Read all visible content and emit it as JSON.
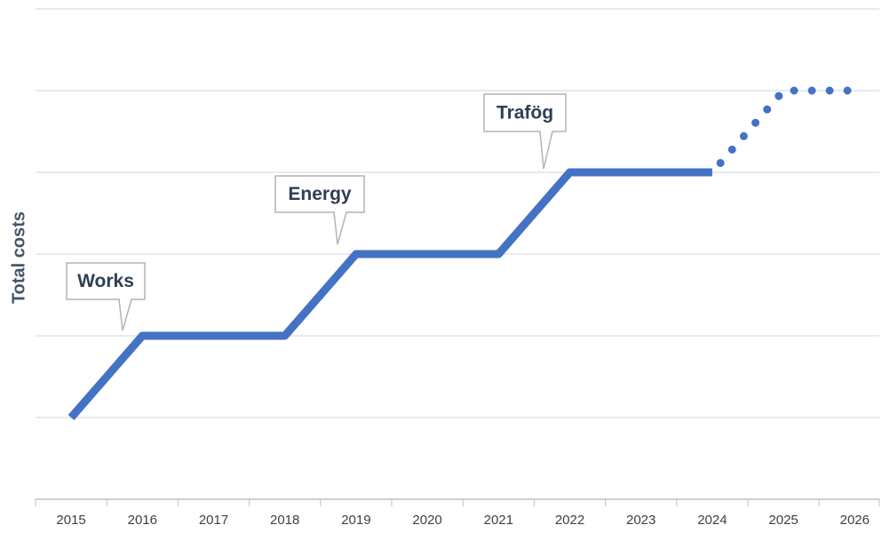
{
  "chart_data": {
    "type": "line",
    "y_label": "Total costs",
    "categories": [
      "2015",
      "2016",
      "2017",
      "2018",
      "2019",
      "2020",
      "2021",
      "2022",
      "2023",
      "2024",
      "2025",
      "2026"
    ],
    "series": [
      {
        "color": "#4472c4",
        "style": "solid",
        "values": [
          1,
          2,
          2,
          2,
          3,
          3,
          3,
          4,
          4,
          4,
          null,
          null
        ]
      },
      {
        "color": "#4472c4",
        "style": "dotted",
        "values": [
          null,
          null,
          null,
          null,
          null,
          null,
          null,
          null,
          null,
          4,
          5,
          5
        ]
      }
    ],
    "ylim": [
      0,
      6
    ],
    "yticks": [
      0,
      1,
      2,
      3,
      4,
      5,
      6
    ],
    "grid": true,
    "annotations": [
      {
        "text": "Works"
      },
      {
        "text": "Energy"
      },
      {
        "text": "Trafög"
      }
    ]
  }
}
